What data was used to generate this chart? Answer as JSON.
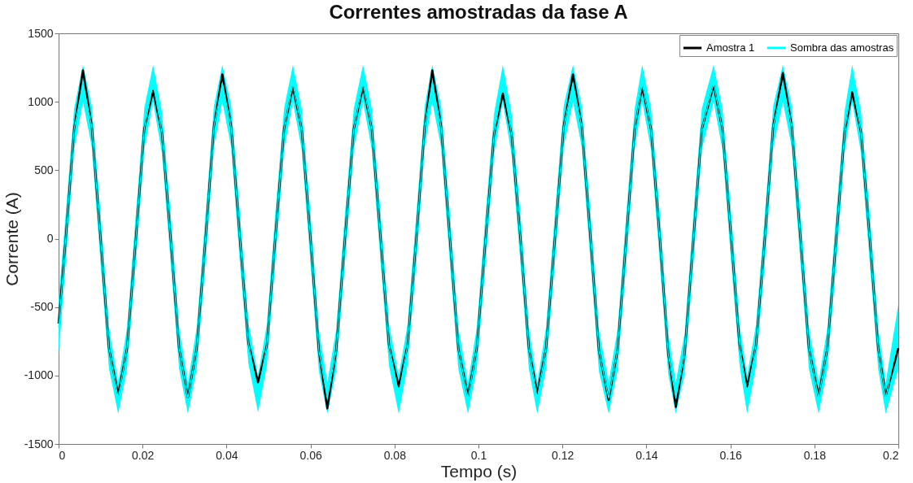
{
  "chart_data": {
    "type": "line",
    "title": "Correntes amostradas da fase A",
    "xlabel": "Tempo (s)",
    "ylabel": "Corrente (A)",
    "x": [
      0,
      0.0017,
      0.0037,
      0.0058,
      0.0079,
      0.01,
      0.012,
      0.0142,
      0.0163,
      0.0184,
      0.0204,
      0.0225,
      0.0246,
      0.0267,
      0.0287,
      0.0308,
      0.0329,
      0.035,
      0.037,
      0.039,
      0.0411,
      0.0432,
      0.0452,
      0.0475,
      0.0496,
      0.0516,
      0.0537,
      0.0558,
      0.0579,
      0.06,
      0.062,
      0.064,
      0.0661,
      0.0682,
      0.0703,
      0.0725,
      0.0746,
      0.0767,
      0.0787,
      0.081,
      0.0831,
      0.0852,
      0.0872,
      0.089,
      0.0911,
      0.0932,
      0.0952,
      0.0975,
      0.0996,
      0.1017,
      0.1037,
      0.1058,
      0.1079,
      0.11,
      0.112,
      0.114,
      0.1161,
      0.1182,
      0.1203,
      0.1225,
      0.1246,
      0.1267,
      0.1287,
      0.131,
      0.1331,
      0.1352,
      0.1372,
      0.139,
      0.1411,
      0.1432,
      0.1452,
      0.147,
      0.1491,
      0.1512,
      0.1532,
      0.156,
      0.1581,
      0.1602,
      0.1622,
      0.164,
      0.1661,
      0.1682,
      0.1702,
      0.1725,
      0.1746,
      0.1767,
      0.1787,
      0.181,
      0.1831,
      0.1852,
      0.1872,
      0.189,
      0.1911,
      0.1932,
      0.1952,
      0.197,
      0.2
    ],
    "series": [
      {
        "name": "Amostra 1",
        "color": "#000000",
        "values": [
          -620,
          0,
          800,
          1230,
          820,
          0,
          -800,
          -1140,
          -800,
          0,
          800,
          1080,
          780,
          0,
          -800,
          -1160,
          -800,
          0,
          820,
          1200,
          820,
          0,
          -760,
          -1050,
          -780,
          0,
          800,
          1110,
          800,
          0,
          -820,
          -1240,
          -820,
          0,
          800,
          1110,
          800,
          0,
          -780,
          -1080,
          -780,
          0,
          820,
          1230,
          820,
          0,
          -800,
          -1150,
          -800,
          0,
          760,
          1060,
          760,
          0,
          -800,
          -1130,
          -800,
          0,
          820,
          1200,
          820,
          0,
          -820,
          -1180,
          -820,
          0,
          800,
          1110,
          800,
          0,
          -840,
          -1230,
          -840,
          0,
          800,
          1120,
          800,
          0,
          -780,
          -1080,
          -780,
          0,
          820,
          1210,
          820,
          0,
          -800,
          -1150,
          -800,
          0,
          780,
          1070,
          780,
          0,
          -800,
          -1150,
          -800
        ]
      },
      {
        "name": "Sombra das amostras",
        "color": "#00ffff",
        "values": [
          -650,
          0,
          800,
          1135,
          820,
          0,
          -800,
          -1165,
          -800,
          0,
          800,
          1135,
          780,
          0,
          -800,
          -1165,
          -800,
          0,
          820,
          1135,
          820,
          0,
          -760,
          -1135,
          -780,
          0,
          800,
          1135,
          800,
          0,
          -820,
          -1165,
          -820,
          0,
          800,
          1135,
          800,
          0,
          -780,
          -1140,
          -780,
          0,
          820,
          1135,
          820,
          0,
          -800,
          -1165,
          -800,
          0,
          760,
          1135,
          760,
          0,
          -800,
          -1165,
          -800,
          0,
          820,
          1135,
          820,
          0,
          -820,
          -1165,
          -820,
          0,
          800,
          1135,
          800,
          0,
          -840,
          -1165,
          -840,
          0,
          800,
          1135,
          800,
          0,
          -780,
          -1140,
          -780,
          0,
          820,
          1135,
          820,
          0,
          -800,
          -1165,
          -800,
          0,
          780,
          1135,
          780,
          0,
          -800,
          -1165,
          -715
        ],
        "upper": [
          -450,
          180,
          950,
          1270,
          970,
          180,
          -650,
          -1050,
          -650,
          180,
          950,
          1270,
          930,
          180,
          -650,
          -1050,
          -650,
          180,
          970,
          1270,
          970,
          180,
          -610,
          -1000,
          -630,
          180,
          950,
          1270,
          950,
          180,
          -670,
          -1050,
          -670,
          180,
          950,
          1270,
          950,
          180,
          -630,
          -1000,
          -630,
          180,
          970,
          1270,
          970,
          180,
          -650,
          -1050,
          -650,
          180,
          910,
          1270,
          910,
          180,
          -650,
          -1050,
          -650,
          180,
          970,
          1270,
          970,
          180,
          -670,
          -1050,
          -670,
          180,
          950,
          1270,
          950,
          180,
          -690,
          -1050,
          -690,
          180,
          950,
          1270,
          950,
          180,
          -630,
          -1000,
          -630,
          180,
          970,
          1270,
          970,
          180,
          -650,
          -1050,
          -650,
          180,
          930,
          1270,
          930,
          180,
          -650,
          -1050,
          -480
        ],
        "lower": [
          -850,
          -180,
          650,
          1000,
          670,
          -180,
          -950,
          -1280,
          -950,
          -180,
          650,
          1000,
          630,
          -180,
          -950,
          -1280,
          -950,
          -180,
          670,
          1000,
          670,
          -180,
          -910,
          -1270,
          -930,
          -180,
          650,
          1000,
          650,
          -180,
          -970,
          -1280,
          -970,
          -180,
          650,
          1000,
          650,
          -180,
          -930,
          -1280,
          -930,
          -180,
          670,
          1000,
          670,
          -180,
          -950,
          -1280,
          -950,
          -180,
          610,
          1000,
          610,
          -180,
          -950,
          -1280,
          -950,
          -180,
          670,
          1000,
          670,
          -180,
          -970,
          -1280,
          -970,
          -180,
          650,
          1000,
          650,
          -180,
          -990,
          -1280,
          -990,
          -180,
          650,
          1000,
          650,
          -180,
          -930,
          -1280,
          -930,
          -180,
          670,
          1000,
          670,
          -180,
          -950,
          -1280,
          -950,
          -180,
          630,
          1000,
          630,
          -180,
          -950,
          -1280,
          -950
        ]
      }
    ],
    "xlim": [
      0,
      0.2
    ],
    "xticks": [
      0,
      0.02,
      0.04,
      0.06,
      0.08,
      0.1,
      0.12,
      0.14,
      0.16,
      0.18,
      0.2
    ],
    "ylim": [
      -1500,
      1500
    ],
    "yticks": [
      -1500,
      -1000,
      -500,
      0,
      500,
      1000,
      1500
    ],
    "legend": "top right",
    "grid": false,
    "marker": "none",
    "line_style": "solid"
  }
}
